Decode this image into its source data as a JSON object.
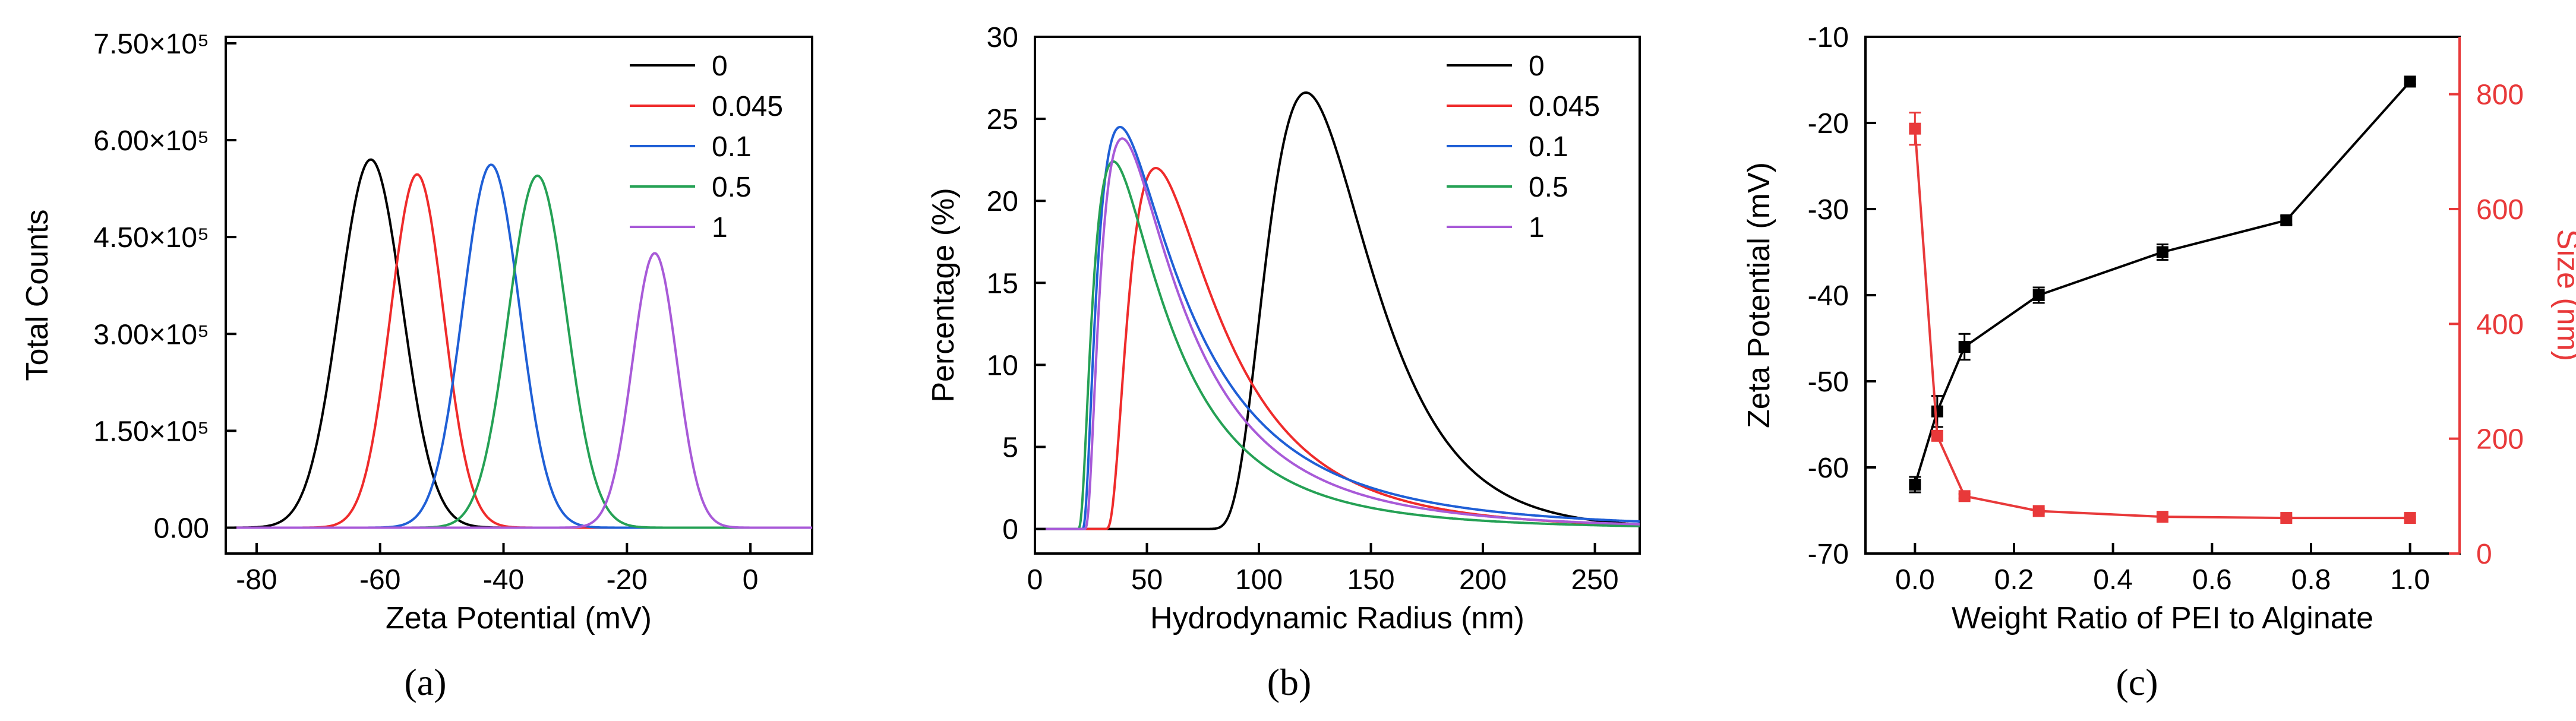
{
  "colors": {
    "black": "#000000",
    "red": "#ef2b2b",
    "blue": "#1f5fd6",
    "green": "#25a155",
    "purple": "#a85ad8",
    "size_axis": "#e8393a"
  },
  "panels": {
    "a": "(a)",
    "b": "(b)",
    "c": "(c)"
  },
  "chart_data": [
    {
      "id": "a",
      "type": "line",
      "curve": "gaussian",
      "xlabel": "Zeta Potential (mV)",
      "ylabel": "Total Counts",
      "xlim": [
        -85,
        10
      ],
      "ylim": [
        -40000,
        760000
      ],
      "xticks": [
        -80,
        -60,
        -40,
        -20,
        0
      ],
      "yticks": [
        {
          "value": 0,
          "label": "0.00"
        },
        {
          "value": 150000,
          "label": "1.50×10⁵"
        },
        {
          "value": 300000,
          "label": "3.00×10⁵"
        },
        {
          "value": 450000,
          "label": "4.50×10⁵"
        },
        {
          "value": 600000,
          "label": "6.00×10⁵"
        },
        {
          "value": 750000,
          "label": "7.50×10⁵"
        }
      ],
      "legend": [
        "0",
        "0.045",
        "0.1",
        "0.5",
        "1"
      ],
      "series": [
        {
          "name": "0",
          "color": "black",
          "peak_x": -61.5,
          "peak_y": 570000,
          "sigma": 5.1
        },
        {
          "name": "0.045",
          "color": "red",
          "peak_x": -54.0,
          "peak_y": 547000,
          "sigma": 4.3
        },
        {
          "name": "0.1",
          "color": "blue",
          "peak_x": -42.0,
          "peak_y": 562000,
          "sigma": 4.6
        },
        {
          "name": "0.5",
          "color": "green",
          "peak_x": -34.5,
          "peak_y": 545000,
          "sigma": 4.7
        },
        {
          "name": "1",
          "color": "purple",
          "peak_x": -15.5,
          "peak_y": 425000,
          "sigma": 3.6
        }
      ]
    },
    {
      "id": "b",
      "type": "line",
      "curve": "lognormal",
      "xlabel": "Hydrodynamic Radius (nm)",
      "ylabel": "Percentage (%)",
      "xlim": [
        0,
        270
      ],
      "ylim": [
        -1.5,
        30
      ],
      "xticks": [
        0,
        50,
        100,
        150,
        200,
        250
      ],
      "yticks": [
        0,
        5,
        10,
        15,
        20,
        25,
        30
      ],
      "legend": [
        "0",
        "0.045",
        "0.1",
        "0.5",
        "1"
      ],
      "series": [
        {
          "name": "0",
          "color": "black",
          "start_x": 72,
          "mode_x": 121,
          "peak_y": 26.6,
          "shape": 0.46
        },
        {
          "name": "0.045",
          "color": "red",
          "start_x": 31,
          "mode_x": 54,
          "peak_y": 22.0,
          "shape": 0.78
        },
        {
          "name": "0.1",
          "color": "blue",
          "start_x": 21,
          "mode_x": 38,
          "peak_y": 24.5,
          "shape": 0.95
        },
        {
          "name": "0.5",
          "color": "green",
          "start_x": 19,
          "mode_x": 35,
          "peak_y": 22.4,
          "shape": 0.88
        },
        {
          "name": "1",
          "color": "purple",
          "start_x": 22,
          "mode_x": 39,
          "peak_y": 23.8,
          "shape": 0.9
        }
      ]
    },
    {
      "id": "c",
      "type": "line",
      "xlabel": "Weight Ratio of PEI to Alginate",
      "ylabel_left": "Zeta Potential (mV)",
      "ylabel_right": "Size (nm)",
      "xlim": [
        -0.1,
        1.1
      ],
      "ylim_left": [
        -70,
        -10
      ],
      "ylim_right": [
        0,
        900
      ],
      "xticks": [
        0.0,
        0.2,
        0.4,
        0.6,
        0.8,
        1.0
      ],
      "xtick_labels": [
        "0.0",
        "0.2",
        "0.4",
        "0.6",
        "0.8",
        "1.0"
      ],
      "yticks_left": [
        -70,
        -60,
        -50,
        -40,
        -30,
        -20,
        -10
      ],
      "yticks_right": [
        0,
        200,
        400,
        600,
        800
      ],
      "series": [
        {
          "name": "Zeta Potential",
          "axis": "left",
          "color": "black",
          "x": [
            0,
            0.045,
            0.1,
            0.25,
            0.5,
            0.75,
            1.0
          ],
          "y": [
            -62.0,
            -53.5,
            -46.0,
            -40.0,
            -35.0,
            -31.3,
            -15.2
          ],
          "err": [
            0.9,
            1.8,
            1.5,
            0.9,
            0.9,
            0.5,
            0.3
          ]
        },
        {
          "name": "Size",
          "axis": "right",
          "color": "red",
          "x": [
            0,
            0.045,
            0.1,
            0.25,
            0.5,
            0.75,
            1.0
          ],
          "y": [
            740,
            205,
            100,
            74,
            64,
            62,
            62
          ],
          "err": [
            28,
            8,
            4,
            3,
            2,
            2,
            2
          ]
        }
      ]
    }
  ]
}
